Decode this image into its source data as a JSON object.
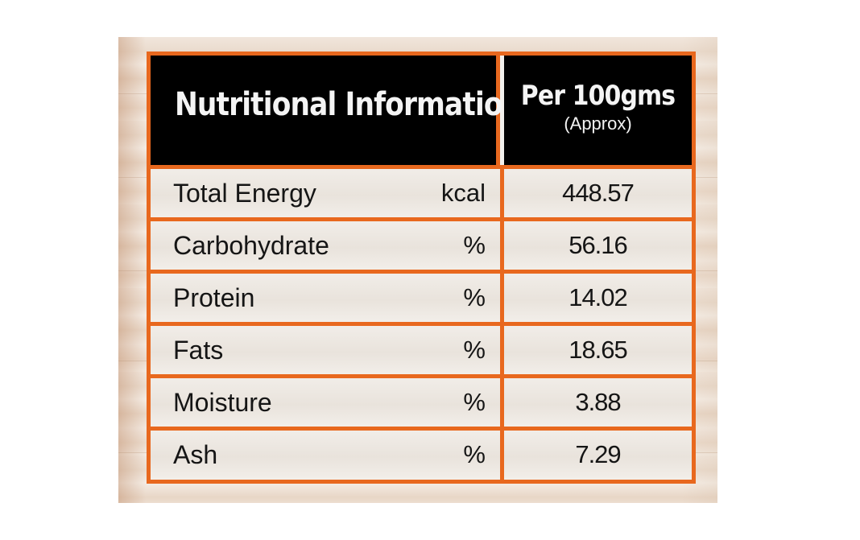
{
  "header": {
    "title": "Nutritional Information",
    "per": "Per 100gms",
    "per_note": "(Approx)"
  },
  "rows": [
    {
      "name": "Total Energy",
      "unit": "kcal",
      "value": "448.57"
    },
    {
      "name": "Carbohydrate",
      "unit": "%",
      "value": "56.16"
    },
    {
      "name": "Protein",
      "unit": "%",
      "value": "14.02"
    },
    {
      "name": "Fats",
      "unit": "%",
      "value": "18.65"
    },
    {
      "name": "Moisture",
      "unit": "%",
      "value": "3.88"
    },
    {
      "name": "Ash",
      "unit": "%",
      "value": "7.29"
    }
  ],
  "colors": {
    "border": "#e8681e",
    "header_bg": "#000000",
    "header_text": "#f4f4f4",
    "body_text": "#151515"
  }
}
